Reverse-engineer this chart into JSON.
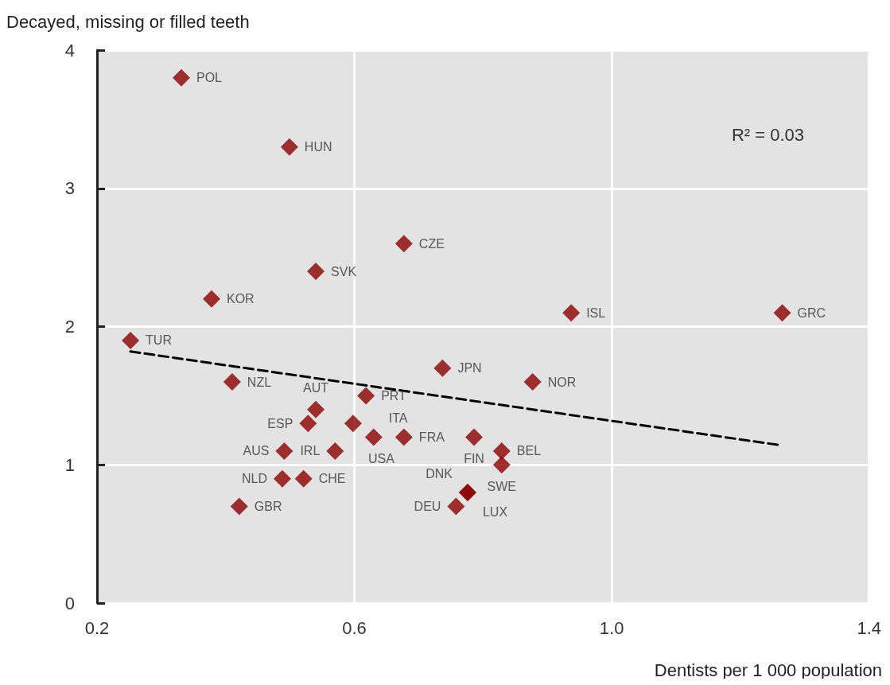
{
  "chart_data": {
    "type": "scatter",
    "xlabel": "Dentists per 1 000 population",
    "ylabel": "Decayed, missing or filled teeth",
    "annotations": [
      "R² = 0.03"
    ],
    "marker": "diamond",
    "grid": true,
    "xlim": [
      0.2,
      1.4
    ],
    "xticks": [
      0.2,
      0.6,
      {
        "value": 1.0,
        "label": "1.0"
      },
      1.4
    ],
    "ylim": [
      0,
      4
    ],
    "yticks": [
      0,
      1,
      2,
      3,
      4
    ],
    "series": [
      {
        "color": "#8b0000",
        "x": [
          0.331,
          0.499,
          0.677,
          0.54,
          0.378,
          0.937,
          1.265,
          0.252,
          0.737,
          0.41,
          0.877,
          0.618,
          0.54,
          0.528,
          0.598,
          0.63,
          0.57,
          0.677,
          0.786,
          0.829,
          0.829,
          0.491,
          0.488,
          0.521,
          0.421,
          0.776,
          0.776,
          0.758
        ],
        "values": [
          3.8,
          3.3,
          2.6,
          2.4,
          2.2,
          2.1,
          2.1,
          1.9,
          1.7,
          1.6,
          1.6,
          1.5,
          1.4,
          1.3,
          1.3,
          1.2,
          1.1,
          1.2,
          1.2,
          1.1,
          1.0,
          1.1,
          0.9,
          0.9,
          0.7,
          0.8,
          0.8,
          0.7
        ],
        "value_labels": [
          "POL",
          "HUN",
          "CZE",
          "SVK",
          "KOR",
          "ISL",
          "GRC",
          "TUR",
          "JPN",
          "NZL",
          "NOR",
          "PRT",
          "AUT",
          "ESP",
          "USA",
          "ITA",
          "IRL",
          "FRA",
          "FIN",
          "BEL",
          "SWE",
          "AUS",
          "NLD",
          "CHE",
          "GBR",
          "DNK",
          "LUX",
          "DEU"
        ]
      },
      {
        "type": "line",
        "color": "#000000",
        "line_style": "dashed",
        "marker": "none",
        "x": [
          0.252,
          1.265
        ],
        "values": [
          1.82,
          1.14
        ]
      }
    ]
  }
}
